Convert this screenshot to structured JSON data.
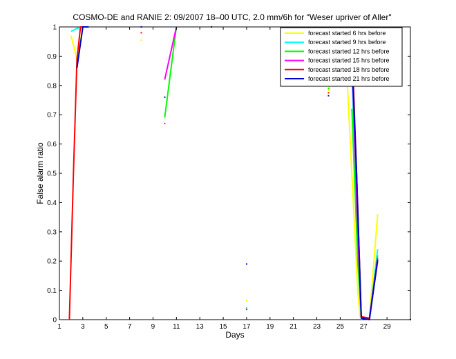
{
  "chart_data": {
    "type": "line",
    "title": "COSMO-DE and RANIE 2: 09/2007 18–00 UTC, 2.0 mm/6h for \"Weser upriver of Aller\"",
    "xlabel": "Days",
    "ylabel": "False alarm ratio",
    "xlim": [
      1,
      31
    ],
    "ylim": [
      0,
      1
    ],
    "xticks": [
      1,
      3,
      5,
      7,
      9,
      11,
      13,
      15,
      17,
      19,
      21,
      23,
      25,
      27,
      29
    ],
    "yticks": [
      0,
      0.1,
      0.2,
      0.3,
      0.4,
      0.5,
      0.6,
      0.7,
      0.8,
      0.9,
      1
    ],
    "ytick_labels": [
      "0",
      "0.1",
      "0.2",
      "0.3",
      "0.4",
      "0.5",
      "0.6",
      "0.7",
      "0.8",
      "0.9",
      "1"
    ],
    "legend_position": "top-right",
    "series": [
      {
        "name": "forecast started 6 hrs before",
        "color": "#ffff00",
        "segments": [
          [
            [
              2,
              0.97
            ],
            [
              2.5,
              0.89
            ],
            [
              3,
              1
            ]
          ],
          [
            [
              24,
              0.78
            ],
            [
              24.5,
              0.945
            ],
            [
              25.5,
              0.89
            ],
            [
              26.5,
              0.1
            ],
            [
              26.7,
              0.01
            ],
            [
              27.5,
              0.005
            ],
            [
              28.2,
              0.36
            ]
          ]
        ],
        "points": [
          [
            8,
            0.955
          ],
          [
            17,
            0.065
          ]
        ]
      },
      {
        "name": "forecast started 9 hrs before",
        "color": "#00ffff",
        "segments": [
          [
            [
              2,
              0.985
            ],
            [
              2.5,
              0.995
            ],
            [
              3,
              1
            ]
          ],
          [
            [
              26,
              0.85
            ],
            [
              26.5,
              0.2
            ],
            [
              26.8,
              0.01
            ],
            [
              27.5,
              0.005
            ],
            [
              28.2,
              0.24
            ]
          ]
        ],
        "points": [
          [
            24,
            0.8
          ],
          [
            17,
            0.04
          ]
        ]
      },
      {
        "name": "forecast started 12 hrs before",
        "color": "#00ff00",
        "segments": [
          [
            [
              10,
              0.69
            ],
            [
              11,
              1
            ]
          ],
          [
            [
              26,
              0.72
            ],
            [
              26.5,
              0.2
            ],
            [
              26.8,
              0.01
            ],
            [
              27.5,
              0.005
            ],
            [
              28.2,
              0.22
            ]
          ]
        ],
        "points": [
          [
            24,
            0.79
          ]
        ]
      },
      {
        "name": "forecast started 15 hrs before",
        "color": "#ff00ff",
        "segments": [
          [
            [
              10,
              0.82
            ],
            [
              11,
              1
            ]
          ],
          [
            [
              26,
              0.9
            ],
            [
              26.5,
              0.3
            ],
            [
              26.8,
              0.01
            ],
            [
              27.5,
              0.005
            ],
            [
              28.2,
              0.21
            ]
          ]
        ],
        "points": [
          [
            10,
            0.67
          ],
          [
            24,
            0.83
          ]
        ]
      },
      {
        "name": "forecast started 18 hrs before",
        "color": "#ff0000",
        "segments": [
          [
            [
              1.85,
              0.0
            ],
            [
              2.2,
              0.5
            ],
            [
              2.5,
              0.89
            ],
            [
              2.8,
              1
            ],
            [
              3,
              1
            ]
          ],
          [
            [
              26,
              0.95
            ],
            [
              26.4,
              0.5
            ],
            [
              26.8,
              0.01
            ],
            [
              27.5,
              0.005
            ],
            [
              28.2,
              0.2
            ]
          ]
        ],
        "points": [
          [
            8,
            0.98
          ],
          [
            24,
            0.775
          ],
          [
            17,
            0.035
          ]
        ]
      },
      {
        "name": "forecast started 21 hrs before",
        "color": "#0000cc",
        "segments": [
          [
            [
              2.5,
              0.86
            ],
            [
              3,
              1
            ],
            [
              3.5,
              1
            ]
          ],
          [
            [
              25.9,
              1.0
            ],
            [
              26.4,
              0.5
            ],
            [
              26.8,
              0.005
            ],
            [
              27.5,
              0.0
            ],
            [
              28.2,
              0.205
            ]
          ]
        ],
        "points": [
          [
            8,
            1.0
          ],
          [
            10,
            0.76
          ],
          [
            14,
            1.0
          ],
          [
            17,
            0.19
          ],
          [
            24,
            0.765
          ],
          [
            31,
            0.0
          ]
        ]
      }
    ]
  }
}
